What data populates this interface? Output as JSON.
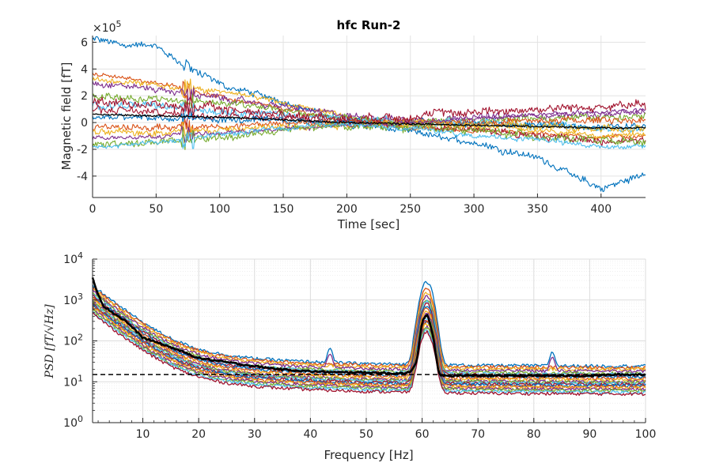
{
  "chart_data": [
    {
      "type": "line",
      "title": "hfc Run-2",
      "xlabel": "Time [sec]",
      "ylabel": "Magnetic field [fT]",
      "y_multiplier": "×10",
      "y_multiplier_exp": "5",
      "xlim": [
        0,
        435
      ],
      "ylim": [
        -5.6,
        6.5
      ],
      "xticks": [
        0,
        50,
        100,
        150,
        200,
        250,
        300,
        350,
        400
      ],
      "yticks": [
        -4,
        -2,
        0,
        2,
        4,
        6
      ],
      "grid": true,
      "series_colors": [
        "#0072BD",
        "#D95319",
        "#EDB120",
        "#7E2F8E",
        "#77AC30",
        "#4DBEEE",
        "#A2142F"
      ],
      "mean_color": "#000000",
      "series": [
        {
          "x": [
            0,
            50,
            100,
            150,
            200,
            250,
            300,
            350,
            400,
            435
          ],
          "values": [
            6.2,
            5.6,
            2.8,
            1.6,
            0.0,
            -0.7,
            -1.5,
            -2.6,
            -5.0,
            -3.8
          ]
        },
        {
          "x": [
            0,
            50,
            100,
            150,
            200,
            250,
            300,
            350,
            400,
            435
          ],
          "values": [
            3.6,
            3.0,
            1.9,
            1.0,
            0.2,
            -0.4,
            -0.6,
            -0.8,
            -1.1,
            -1.0
          ]
        },
        {
          "x": [
            0,
            50,
            100,
            150,
            200,
            250,
            300,
            350,
            400,
            435
          ],
          "values": [
            3.2,
            2.8,
            2.3,
            1.5,
            0.4,
            -0.4,
            -0.2,
            -0.6,
            -1.0,
            -0.9
          ]
        },
        {
          "x": [
            0,
            50,
            100,
            150,
            200,
            250,
            300,
            350,
            400,
            435
          ],
          "values": [
            3.0,
            2.5,
            1.8,
            1.2,
            0.5,
            0.2,
            0.4,
            0.5,
            0.6,
            0.7
          ]
        },
        {
          "x": [
            0,
            50,
            100,
            150,
            200,
            250,
            300,
            350,
            400,
            435
          ],
          "values": [
            2.0,
            1.8,
            1.5,
            0.9,
            0.3,
            -0.1,
            0.2,
            0.3,
            0.4,
            0.4
          ]
        },
        {
          "x": [
            0,
            50,
            100,
            150,
            200,
            250,
            300,
            350,
            400,
            435
          ],
          "values": [
            1.4,
            1.2,
            0.9,
            0.6,
            0.2,
            0.0,
            0.1,
            -0.2,
            -0.4,
            -0.5
          ]
        },
        {
          "x": [
            0,
            50,
            100,
            150,
            200,
            250,
            300,
            350,
            400,
            435
          ],
          "values": [
            1.0,
            0.7,
            0.6,
            0.4,
            0.1,
            -0.2,
            -0.5,
            -0.9,
            -1.5,
            -1.3
          ]
        },
        {
          "x": [
            0,
            50,
            100,
            150,
            200,
            250,
            300,
            350,
            400,
            435
          ],
          "values": [
            0.4,
            0.3,
            0.2,
            0.1,
            0.1,
            0.0,
            -0.1,
            -0.2,
            -0.3,
            -0.3
          ]
        },
        {
          "x": [
            0,
            50,
            100,
            150,
            200,
            250,
            300,
            350,
            400,
            435
          ],
          "values": [
            -0.3,
            -0.4,
            -0.3,
            -0.1,
            0.0,
            0.1,
            0.0,
            0.1,
            0.2,
            0.2
          ]
        },
        {
          "x": [
            0,
            50,
            100,
            150,
            200,
            250,
            300,
            350,
            400,
            435
          ],
          "values": [
            -0.8,
            -0.7,
            -0.6,
            -0.3,
            -0.1,
            0.0,
            -0.1,
            -0.3,
            -0.5,
            -0.6
          ]
        },
        {
          "x": [
            0,
            50,
            100,
            150,
            200,
            250,
            300,
            350,
            400,
            435
          ],
          "values": [
            -1.2,
            -1.0,
            -0.8,
            -0.5,
            -0.2,
            0.0,
            0.3,
            0.6,
            0.8,
            0.9
          ]
        },
        {
          "x": [
            0,
            50,
            100,
            150,
            200,
            250,
            300,
            350,
            400,
            435
          ],
          "values": [
            -1.6,
            -1.5,
            -1.1,
            -0.6,
            -0.2,
            -0.3,
            -0.6,
            -1.0,
            -1.4,
            -1.5
          ]
        },
        {
          "x": [
            0,
            50,
            100,
            150,
            200,
            250,
            300,
            350,
            400,
            435
          ],
          "values": [
            -1.9,
            -1.5,
            -0.9,
            -0.4,
            -0.1,
            -0.4,
            -1.0,
            -1.3,
            -1.8,
            -1.8
          ]
        },
        {
          "x": [
            0,
            50,
            100,
            150,
            200,
            250,
            300,
            350,
            400,
            435
          ],
          "values": [
            1.7,
            1.3,
            1.0,
            0.6,
            0.3,
            0.5,
            0.8,
            1.0,
            1.2,
            1.3
          ]
        }
      ],
      "mean_series": {
        "x": [
          0,
          50,
          100,
          150,
          200,
          250,
          300,
          350,
          400,
          435
        ],
        "values": [
          0.6,
          0.5,
          0.4,
          0.2,
          0.0,
          -0.1,
          -0.2,
          -0.3,
          -0.4,
          -0.4
        ]
      }
    },
    {
      "type": "line",
      "xlabel": "Frequency [Hz]",
      "ylabel": "PSD [fT/√Hz]",
      "yscale": "log",
      "xlim": [
        1,
        100
      ],
      "ylim": [
        1,
        10000
      ],
      "xticks": [
        10,
        20,
        30,
        40,
        50,
        60,
        70,
        80,
        90,
        100
      ],
      "ytick_labels": [
        {
          "base": "10",
          "exp": "0"
        },
        {
          "base": "10",
          "exp": "1"
        },
        {
          "base": "10",
          "exp": "2"
        },
        {
          "base": "10",
          "exp": "3"
        },
        {
          "base": "10",
          "exp": "4"
        }
      ],
      "grid": true,
      "series_colors": [
        "#0072BD",
        "#D95319",
        "#EDB120",
        "#7E2F8E",
        "#77AC30",
        "#4DBEEE",
        "#A2142F"
      ],
      "mean_color": "#000000",
      "series_floor_levels": [
        24,
        22,
        20,
        18,
        16,
        15,
        14,
        13,
        12,
        11,
        10,
        9.5,
        9,
        8.5,
        8,
        7.5,
        7,
        6.5,
        6,
        5.5,
        5
      ],
      "series_peak_60hz": [
        2800,
        1900,
        1500,
        1200,
        1000,
        900,
        800,
        700,
        600,
        500,
        450,
        400,
        350,
        320,
        300,
        280,
        250,
        220,
        200,
        180,
        160
      ],
      "mean_psd": {
        "x": [
          1,
          2,
          3,
          5,
          7,
          10,
          15,
          20,
          25,
          30,
          35,
          40,
          45,
          50,
          55,
          58,
          59,
          60,
          61,
          62,
          63,
          64,
          70,
          80,
          83,
          85,
          90,
          95,
          100
        ],
        "values": [
          3500,
          1400,
          700,
          450,
          300,
          120,
          70,
          38,
          30,
          24,
          20,
          18,
          17,
          17,
          16,
          17,
          30,
          300,
          450,
          120,
          15,
          14,
          14,
          14,
          14,
          14,
          14,
          15,
          15
        ]
      },
      "reference_line": {
        "value": 15,
        "style": "dashed",
        "color": "#000000"
      }
    }
  ]
}
